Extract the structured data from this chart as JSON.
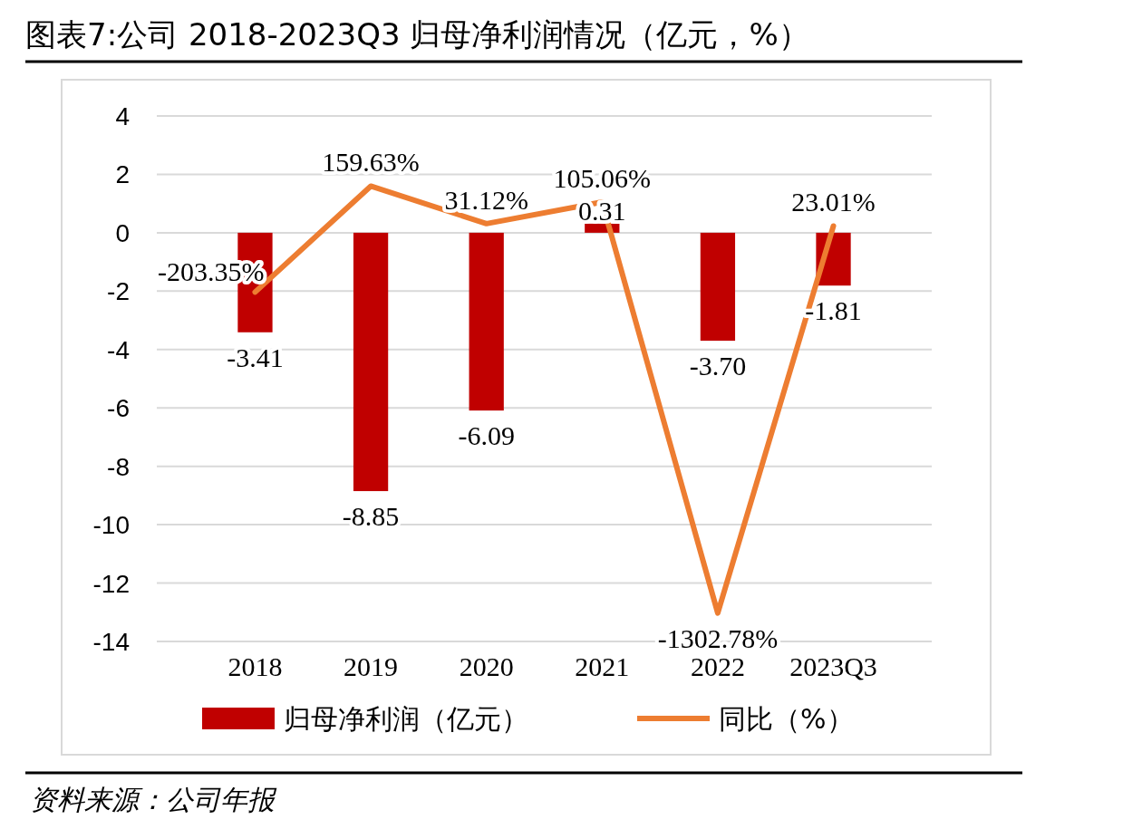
{
  "chart_data": {
    "type": "bar",
    "title": "图表7:公司 2018-2023Q3 归母净利润情况（亿元，%）",
    "categories": [
      "2018",
      "2019",
      "2020",
      "2021",
      "2022",
      "2023Q3"
    ],
    "series": [
      {
        "name": "归母净利润（亿元）",
        "type": "bar",
        "color": "#c00000",
        "values": [
          -3.41,
          -8.85,
          -6.09,
          0.31,
          -3.7,
          -1.81
        ],
        "value_labels": [
          "-3.41",
          "-8.85",
          "-6.09",
          "0.31",
          "-3.70",
          "-1.81"
        ]
      },
      {
        "name": "同比（%）",
        "type": "line",
        "axis": "y2",
        "color": "#ed7d31",
        "values": [
          -203.35,
          159.63,
          31.12,
          105.06,
          -1302.78,
          23.01
        ],
        "value_labels": [
          "-203.35%",
          "159.63%",
          "31.12%",
          "105.06%",
          "-1302.78%",
          "23.01%"
        ]
      }
    ],
    "ylim": [
      -14,
      4
    ],
    "yticks": [
      -14,
      -12,
      -10,
      -8,
      -6,
      -4,
      -2,
      0,
      2,
      4
    ],
    "y2lim": [
      -1400,
      400
    ],
    "tick_labels": "xy",
    "grid": "y",
    "legend": "bottom",
    "marker": "none",
    "line_style": "solid",
    "annotations": [
      "资料来源：公司年报"
    ]
  }
}
